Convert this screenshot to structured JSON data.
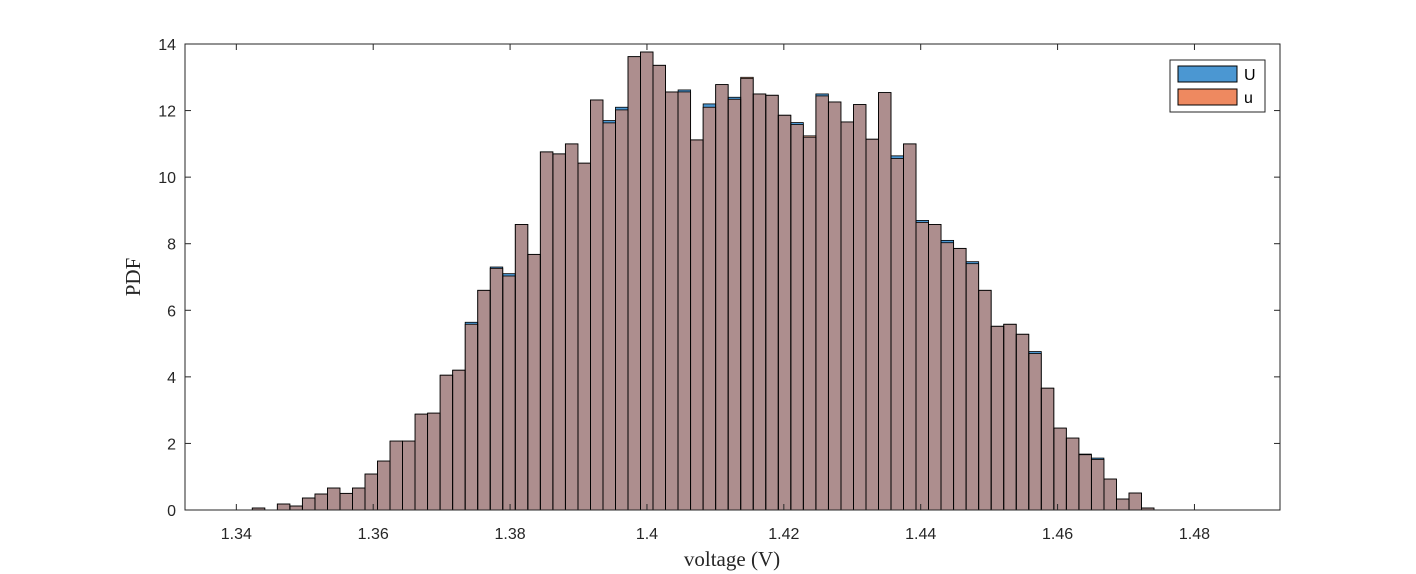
{
  "chart_data": {
    "type": "bar",
    "subtype": "overlaid-histogram",
    "xlabel": "voltage (V)",
    "ylabel": "PDF",
    "xlim": [
      1.3325,
      1.4925
    ],
    "ylim": [
      0,
      14
    ],
    "xticks": [
      "1.34",
      "1.36",
      "1.38",
      "1.4",
      "1.42",
      "1.44",
      "1.46",
      "1.48"
    ],
    "xtick_values": [
      1.34,
      1.36,
      1.38,
      1.4,
      1.42,
      1.44,
      1.46,
      1.48
    ],
    "yticks": [
      "0",
      "2",
      "4",
      "6",
      "8",
      "10",
      "12",
      "14"
    ],
    "ytick_values": [
      0,
      2,
      4,
      6,
      8,
      10,
      12,
      14
    ],
    "grid": false,
    "legend_position": "top-right",
    "bin_start": 1.3405,
    "bin_width": 0.00183,
    "series": [
      {
        "name": "U",
        "color": "#4b97d2",
        "values": [
          0,
          0.06,
          0,
          0.18,
          0.12,
          0.36,
          0.48,
          0.66,
          0.5,
          0.66,
          1.08,
          1.47,
          2.07,
          2.07,
          2.88,
          2.91,
          4.05,
          4.2,
          5.64,
          6.6,
          7.3,
          7.1,
          8.58,
          7.68,
          10.76,
          10.7,
          11.0,
          10.42,
          12.32,
          11.7,
          12.1,
          13.62,
          13.76,
          13.36,
          12.56,
          12.62,
          11.12,
          12.2,
          12.78,
          12.4,
          12.96,
          12.5,
          12.46,
          11.86,
          11.64,
          11.2,
          12.5,
          12.26,
          11.66,
          12.18,
          11.14,
          12.54,
          10.64,
          11.0,
          8.7,
          8.58,
          8.1,
          7.86,
          7.46,
          6.6,
          5.52,
          5.58,
          5.28,
          4.76,
          3.66,
          2.46,
          2.16,
          1.68,
          1.56,
          0.93,
          0.33,
          0.51,
          0.06
        ]
      },
      {
        "name": "u",
        "color": "#ee8960",
        "values": [
          0,
          0.06,
          0,
          0.18,
          0.12,
          0.36,
          0.48,
          0.66,
          0.5,
          0.66,
          1.08,
          1.47,
          2.07,
          2.07,
          2.88,
          2.91,
          4.05,
          4.2,
          5.58,
          6.6,
          7.26,
          7.03,
          8.58,
          7.68,
          10.76,
          10.7,
          11.0,
          10.42,
          12.32,
          11.63,
          12.02,
          13.62,
          13.76,
          13.36,
          12.56,
          12.56,
          11.12,
          12.1,
          12.78,
          12.34,
          13.0,
          12.5,
          12.46,
          11.86,
          11.58,
          11.24,
          12.44,
          12.26,
          11.66,
          12.18,
          11.14,
          12.54,
          10.56,
          11.0,
          8.64,
          8.58,
          8.03,
          7.86,
          7.4,
          6.6,
          5.52,
          5.58,
          5.28,
          4.7,
          3.66,
          2.46,
          2.16,
          1.66,
          1.52,
          0.93,
          0.33,
          0.51,
          0.06
        ]
      }
    ]
  }
}
